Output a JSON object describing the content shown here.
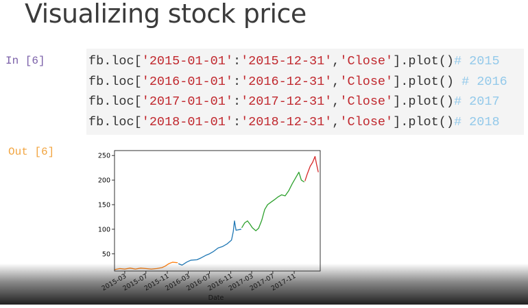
{
  "slide": {
    "title": "Visualizing stock price"
  },
  "cell": {
    "in_prompt": "In  [6]",
    "out_prompt": "Out [6]",
    "code_lines": [
      {
        "prefix": "fb.loc[",
        "start": "'2015-01-01'",
        "sep": ":",
        "end": "'2015-12-31'",
        "comma": ",",
        "col": "'Close'",
        "suffix": "].plot()",
        "gap": "",
        "comment": "# 2015"
      },
      {
        "prefix": "fb.loc[",
        "start": "'2016-01-01'",
        "sep": ":",
        "end": "'2016-12-31'",
        "comma": ",",
        "col": "'Close'",
        "suffix": "].plot()",
        "gap": " ",
        "comment": "# 2016"
      },
      {
        "prefix": "fb.loc[",
        "start": "'2017-01-01'",
        "sep": ":",
        "end": "'2017-12-31'",
        "comma": ",",
        "col": "'Close'",
        "suffix": "].plot()",
        "gap": "",
        "comment": "# 2017"
      },
      {
        "prefix": "fb.loc[",
        "start": "'2018-01-01'",
        "sep": ":",
        "end": "'2018-12-31'",
        "comma": ",",
        "col": "'Close'",
        "suffix": "].plot()",
        "gap": "",
        "comment": "# 2018"
      }
    ]
  },
  "chart_data": {
    "type": "line",
    "xlabel": "Date",
    "ylabel": "",
    "x_ticks": [
      "2015-03",
      "2015-07",
      "2015-11",
      "2016-03",
      "2016-07",
      "2016-11",
      "2017-03",
      "2017-07",
      "2017-11"
    ],
    "y_ticks": [
      50,
      100,
      150,
      200,
      250
    ],
    "xlim": [
      "2015-01-01",
      "2018-03-31"
    ],
    "ylim": [
      15,
      260
    ],
    "grid": false,
    "series": [
      {
        "color": "#ff7f0e",
        "points": [
          [
            "2015-01-02",
            18
          ],
          [
            "2015-02-01",
            20
          ],
          [
            "2015-03-01",
            19
          ],
          [
            "2015-04-01",
            21
          ],
          [
            "2015-05-01",
            19
          ],
          [
            "2015-06-01",
            21
          ],
          [
            "2015-07-01",
            20
          ],
          [
            "2015-08-01",
            19
          ],
          [
            "2015-09-01",
            20
          ],
          [
            "2015-10-01",
            22
          ],
          [
            "2015-10-20",
            25
          ],
          [
            "2015-11-10",
            30
          ],
          [
            "2015-12-01",
            33
          ],
          [
            "2015-12-31",
            32
          ]
        ]
      },
      {
        "color": "#1f77b4",
        "points": [
          [
            "2016-01-04",
            30
          ],
          [
            "2016-01-25",
            27
          ],
          [
            "2016-02-20",
            33
          ],
          [
            "2016-03-15",
            37
          ],
          [
            "2016-04-20",
            38
          ],
          [
            "2016-05-15",
            42
          ],
          [
            "2016-06-10",
            47
          ],
          [
            "2016-07-01",
            50
          ],
          [
            "2016-07-25",
            55
          ],
          [
            "2016-08-20",
            62
          ],
          [
            "2016-09-15",
            65
          ],
          [
            "2016-10-10",
            70
          ],
          [
            "2016-11-05",
            78
          ],
          [
            "2016-11-15",
            95
          ],
          [
            "2016-11-22",
            117
          ],
          [
            "2016-12-01",
            98
          ],
          [
            "2016-12-31",
            100
          ]
        ]
      },
      {
        "color": "#2ca02c",
        "points": [
          [
            "2017-01-03",
            103
          ],
          [
            "2017-01-20",
            113
          ],
          [
            "2017-02-05",
            117
          ],
          [
            "2017-02-20",
            110
          ],
          [
            "2017-03-05",
            103
          ],
          [
            "2017-03-25",
            97
          ],
          [
            "2017-04-10",
            102
          ],
          [
            "2017-04-28",
            118
          ],
          [
            "2017-05-15",
            140
          ],
          [
            "2017-06-01",
            150
          ],
          [
            "2017-06-20",
            155
          ],
          [
            "2017-07-10",
            160
          ],
          [
            "2017-07-28",
            165
          ],
          [
            "2017-08-20",
            170
          ],
          [
            "2017-09-10",
            168
          ],
          [
            "2017-09-30",
            178
          ],
          [
            "2017-10-20",
            192
          ],
          [
            "2017-11-10",
            205
          ],
          [
            "2017-11-28",
            216
          ],
          [
            "2017-12-12",
            200
          ],
          [
            "2017-12-29",
            196
          ]
        ]
      },
      {
        "color": "#d62728",
        "points": [
          [
            "2018-01-02",
            198
          ],
          [
            "2018-01-15",
            212
          ],
          [
            "2018-02-01",
            228
          ],
          [
            "2018-02-15",
            236
          ],
          [
            "2018-03-01",
            248
          ],
          [
            "2018-03-10",
            232
          ],
          [
            "2018-03-20",
            216
          ]
        ]
      }
    ]
  }
}
